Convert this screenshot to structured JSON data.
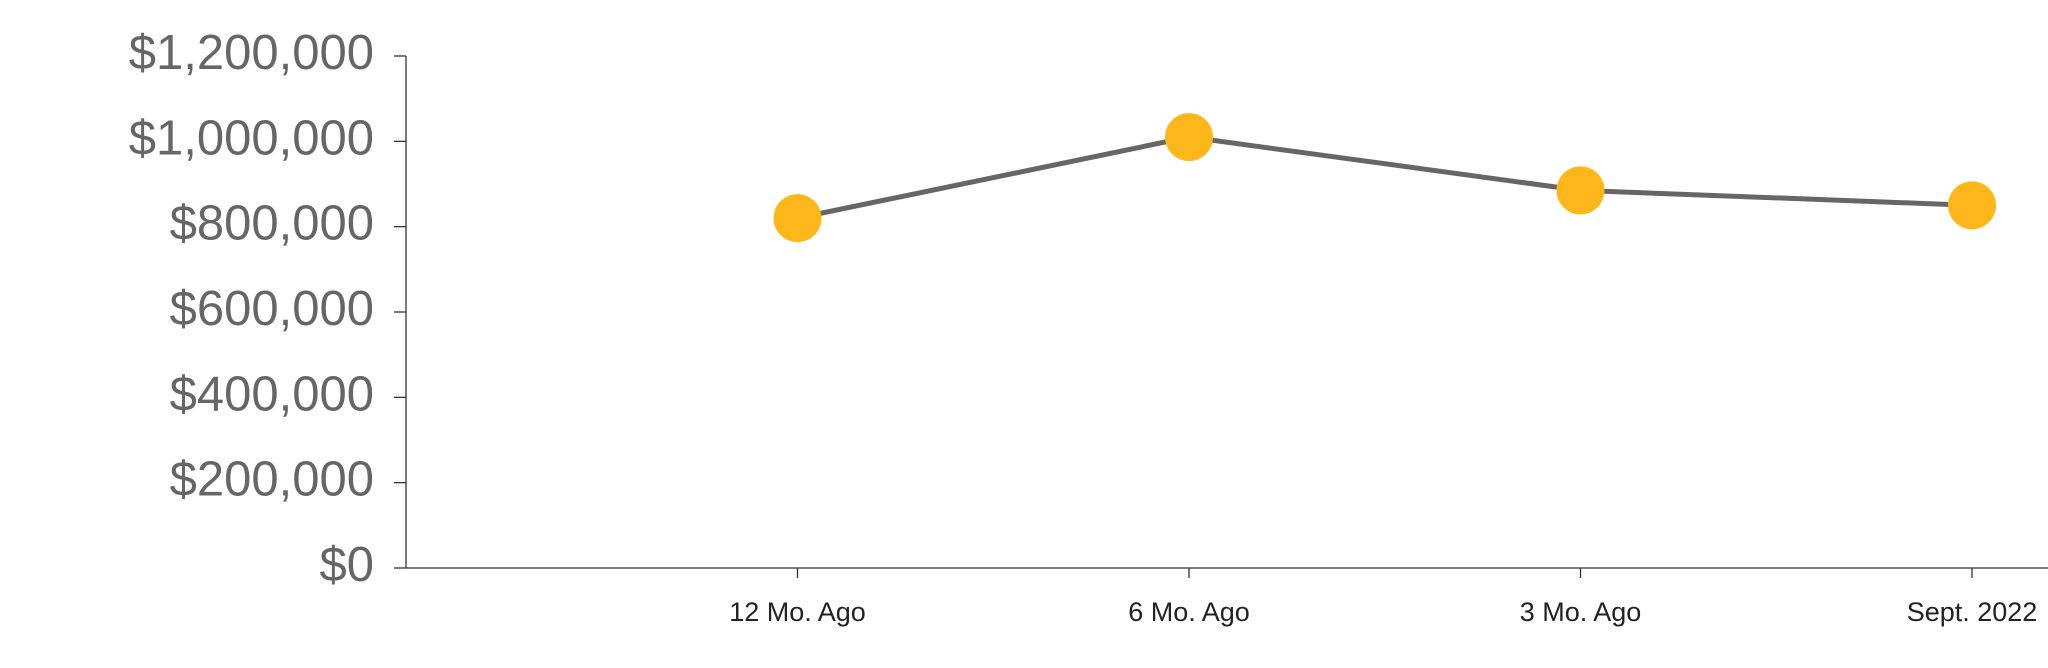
{
  "chart_data": {
    "type": "line",
    "categories": [
      "12 Mo. Ago",
      "6 Mo. Ago",
      "3 Mo. Ago",
      "Sept. 2022"
    ],
    "series": [
      {
        "color": "#fdb71a",
        "line_color": "#666666",
        "values": [
          820000,
          1010000,
          885000,
          850000
        ]
      }
    ],
    "ylim": [
      0,
      1200000
    ],
    "yticks": [
      {
        "value": 0,
        "label": "$0"
      },
      {
        "value": 200000,
        "label": "$200,000"
      },
      {
        "value": 400000,
        "label": "$400,000"
      },
      {
        "value": 600000,
        "label": "$600,000"
      },
      {
        "value": 800000,
        "label": "$800,000"
      },
      {
        "value": 1000000,
        "label": "$1,000,000"
      },
      {
        "value": 1200000,
        "label": "$1,200,000"
      }
    ]
  }
}
